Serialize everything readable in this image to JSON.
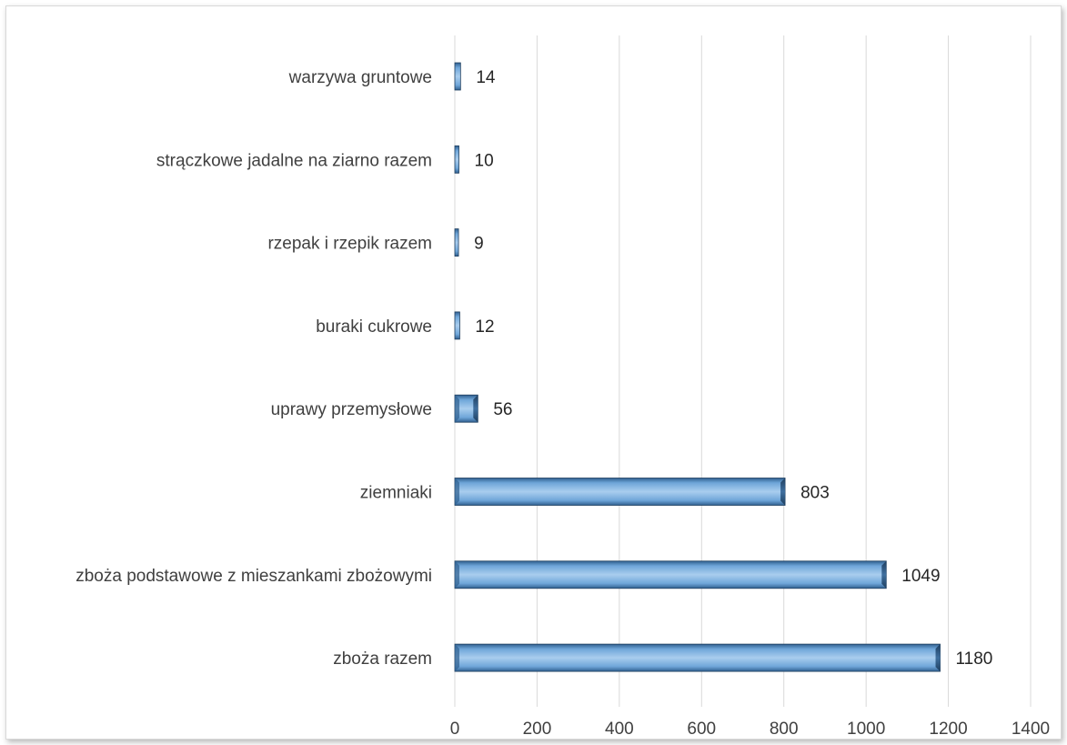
{
  "chart_data": {
    "type": "bar",
    "orientation": "horizontal",
    "categories": [
      "warzywa gruntowe",
      "strączkowe jadalne na ziarno razem",
      "rzepak i rzepik razem",
      "buraki cukrowe",
      "uprawy przemysłowe",
      "ziemniaki",
      "zboża podstawowe z mieszankami zbożowymi",
      "zboża razem"
    ],
    "values": [
      14,
      10,
      9,
      12,
      56,
      803,
      1049,
      1180
    ],
    "xlim": [
      0,
      1400
    ],
    "xticks": [
      0,
      200,
      400,
      600,
      800,
      1000,
      1200,
      1400
    ],
    "grid": true,
    "legend": "none",
    "title": "",
    "xlabel": "",
    "ylabel": "",
    "colors": {
      "bar": "#5b9bd5",
      "bar_light": "#9cc3e8",
      "bar_dark": "#2f5f8f",
      "outline": "#1f3f5f"
    }
  }
}
